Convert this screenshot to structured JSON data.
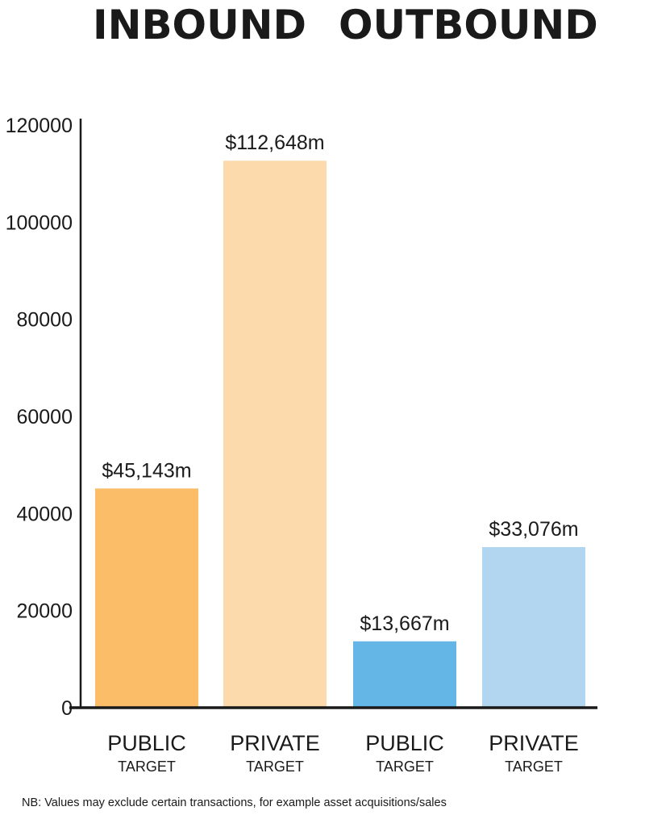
{
  "headings": {
    "inbound": "INBOUND",
    "outbound": "OUTBOUND"
  },
  "chart_data": {
    "type": "bar",
    "title": "",
    "xlabel": "",
    "ylabel": "",
    "ylim": [
      0,
      120000
    ],
    "yticks": [
      0,
      20000,
      40000,
      60000,
      80000,
      100000,
      120000
    ],
    "grid": false,
    "bars": [
      {
        "group": "INBOUND",
        "label": "PUBLIC",
        "sublabel": "TARGET",
        "value": 45143,
        "data_label": "$45,143m",
        "color": "#fbbd68"
      },
      {
        "group": "INBOUND",
        "label": "PRIVATE",
        "sublabel": "TARGET",
        "value": 112648,
        "data_label": "$112,648m",
        "color": "#fddaab"
      },
      {
        "group": "OUTBOUND",
        "label": "PUBLIC",
        "sublabel": "TARGET",
        "value": 13667,
        "data_label": "$13,667m",
        "color": "#63b6e5"
      },
      {
        "group": "OUTBOUND",
        "label": "PRIVATE",
        "sublabel": "TARGET",
        "value": 33076,
        "data_label": "$33,076m",
        "color": "#b2d6f0"
      }
    ]
  },
  "note": "NB: Values may exclude certain transactions, for example asset acquisitions/sales"
}
